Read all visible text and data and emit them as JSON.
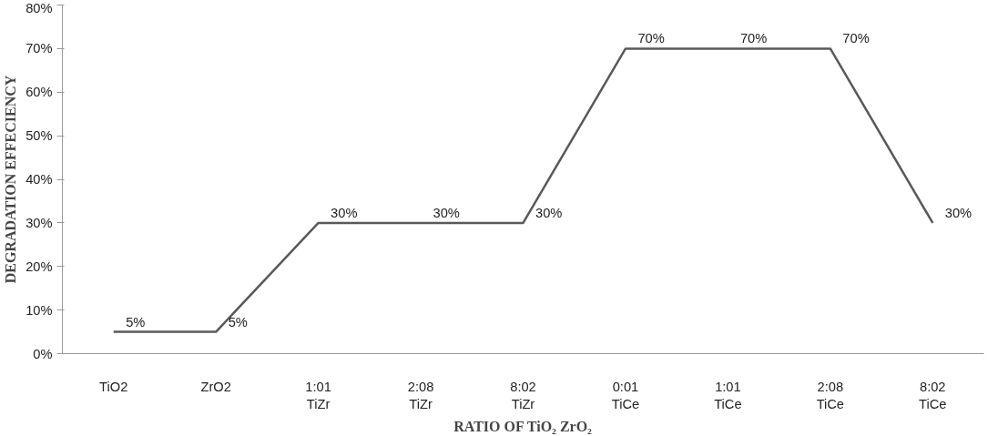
{
  "chart_data": {
    "type": "line",
    "xlabel": "RATIO OF TiO₂ ZrO₂",
    "ylabel": "DEGRADATION EFFECIENCY",
    "categories": [
      "TiO2",
      "ZrO2",
      "1:01\nTiZr",
      "2:08\nTiZr",
      "8:02\nTiZr",
      "0:01\nTiCe",
      "1:01\nTiCe",
      "2:08\nTiCe",
      "8:02\nTiCe"
    ],
    "series": [
      {
        "color": "#595959",
        "values": [
          5,
          5,
          30,
          30,
          30,
          70,
          70,
          70,
          30
        ]
      }
    ],
    "value_labels": [
      "5%",
      "5%",
      "30%",
      "30%",
      "30%",
      "70%",
      "70%",
      "70%",
      "30%"
    ],
    "ylim": [
      0,
      80
    ],
    "yticks": [
      {
        "value": 0,
        "label": "0%"
      },
      {
        "value": 10,
        "label": "10%"
      },
      {
        "value": 20,
        "label": "20%"
      },
      {
        "value": 30,
        "label": "30%"
      },
      {
        "value": 40,
        "label": "40%"
      },
      {
        "value": 50,
        "label": "50%"
      },
      {
        "value": 60,
        "label": "60%"
      },
      {
        "value": 70,
        "label": "70%"
      },
      {
        "value": 80,
        "label": "80%"
      }
    ],
    "grid": false,
    "marker": "none",
    "line_style": "solid"
  }
}
